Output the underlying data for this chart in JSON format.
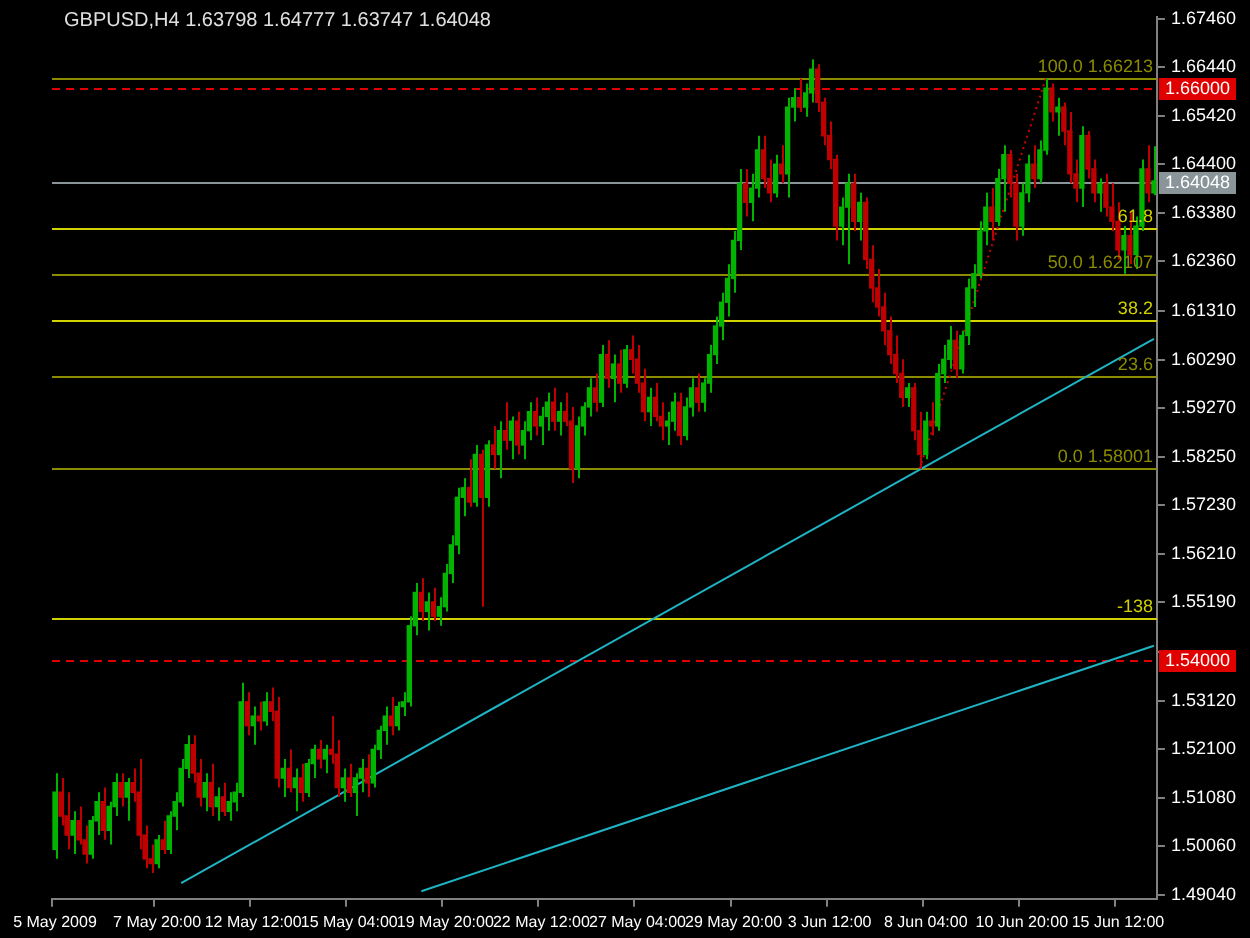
{
  "chart_data": {
    "type": "candlestick",
    "title": "GBPUSD,H4 1.63798 1.64777 1.63747 1.64048",
    "categories": [
      "5 May 2009",
      null,
      null,
      null,
      null,
      null,
      null,
      null,
      null,
      null,
      null,
      null,
      null,
      null,
      null,
      null,
      null,
      "7 May 20:00",
      null,
      null,
      null,
      null,
      null,
      null,
      null,
      null,
      null,
      null,
      null,
      null,
      null,
      null,
      null,
      "12 May 12:00",
      null,
      null,
      null,
      null,
      null,
      null,
      null,
      null,
      null,
      null,
      null,
      null,
      null,
      null,
      null,
      "15 May 04:00",
      null,
      null,
      null,
      null,
      null,
      null,
      null,
      null,
      null,
      null,
      null,
      null,
      null,
      null,
      null,
      "19 May 20:00",
      null,
      null,
      null,
      null,
      null,
      null,
      null,
      null,
      null,
      null,
      null,
      null,
      null,
      null,
      null,
      "22 May 12:00",
      null,
      null,
      null,
      null,
      null,
      null,
      null,
      null,
      null,
      null,
      null,
      null,
      null,
      null,
      null,
      "27 May 04:00",
      null,
      null,
      null,
      null,
      null,
      null,
      null,
      null,
      null,
      null,
      null,
      null,
      null,
      null,
      null,
      "29 May 20:00",
      null,
      null,
      null,
      null,
      null,
      null,
      null,
      null,
      null,
      null,
      null,
      null,
      null,
      null,
      null,
      "3 Jun 12:00",
      null,
      null,
      null,
      null,
      null,
      null,
      null,
      null,
      null,
      null,
      null,
      null,
      null,
      null,
      null,
      "8 Jun 04:00",
      null,
      null,
      null,
      null,
      null,
      null,
      null,
      null,
      null,
      null,
      null,
      null,
      null,
      null,
      null,
      "10 Jun 20:00",
      null,
      null,
      null,
      null,
      null,
      null,
      null,
      null,
      null,
      null,
      null,
      null,
      null,
      null,
      null,
      "15 Jun 12:00",
      null,
      null,
      null,
      null,
      null,
      null
    ],
    "ohlc": [
      [
        1.5,
        1.516,
        1.498,
        1.512
      ],
      [
        1.512,
        1.515,
        1.505,
        1.507
      ],
      [
        1.507,
        1.512,
        1.5,
        1.503
      ],
      [
        1.503,
        1.508,
        1.499,
        1.506
      ],
      [
        1.506,
        1.509,
        1.501,
        1.502
      ],
      [
        1.502,
        1.505,
        1.497,
        1.499
      ],
      [
        1.499,
        1.507,
        1.498,
        1.506
      ],
      [
        1.506,
        1.512,
        1.503,
        1.51
      ],
      [
        1.51,
        1.513,
        1.502,
        1.504
      ],
      [
        1.504,
        1.51,
        1.501,
        1.509
      ],
      [
        1.509,
        1.516,
        1.507,
        1.514
      ],
      [
        1.514,
        1.516,
        1.509,
        1.511
      ],
      [
        1.511,
        1.515,
        1.506,
        1.514
      ],
      [
        1.514,
        1.517,
        1.51,
        1.512
      ],
      [
        1.512,
        1.519,
        1.5,
        1.503
      ],
      [
        1.503,
        1.505,
        1.496,
        1.498
      ],
      [
        1.498,
        1.501,
        1.495,
        1.497
      ],
      [
        1.497,
        1.503,
        1.496,
        1.502
      ],
      [
        1.502,
        1.506,
        1.499,
        1.5
      ],
      [
        1.5,
        1.508,
        1.499,
        1.507
      ],
      [
        1.507,
        1.512,
        1.504,
        1.51
      ],
      [
        1.51,
        1.519,
        1.509,
        1.517
      ],
      [
        1.517,
        1.524,
        1.515,
        1.522
      ],
      [
        1.522,
        1.524,
        1.514,
        1.516
      ],
      [
        1.516,
        1.519,
        1.509,
        1.511
      ],
      [
        1.511,
        1.516,
        1.508,
        1.514
      ],
      [
        1.514,
        1.518,
        1.507,
        1.509
      ],
      [
        1.509,
        1.513,
        1.506,
        1.511
      ],
      [
        1.511,
        1.514,
        1.507,
        1.508
      ],
      [
        1.508,
        1.512,
        1.506,
        1.51
      ],
      [
        1.51,
        1.514,
        1.508,
        1.512
      ],
      [
        1.512,
        1.535,
        1.511,
        1.531
      ],
      [
        1.531,
        1.533,
        1.524,
        1.526
      ],
      [
        1.526,
        1.53,
        1.522,
        1.528
      ],
      [
        1.528,
        1.531,
        1.525,
        1.527
      ],
      [
        1.527,
        1.533,
        1.526,
        1.531
      ],
      [
        1.531,
        1.534,
        1.527,
        1.529
      ],
      [
        1.529,
        1.532,
        1.513,
        1.515
      ],
      [
        1.515,
        1.519,
        1.511,
        1.517
      ],
      [
        1.517,
        1.521,
        1.512,
        1.513
      ],
      [
        1.513,
        1.517,
        1.508,
        1.515
      ],
      [
        1.515,
        1.518,
        1.51,
        1.512
      ],
      [
        1.512,
        1.519,
        1.511,
        1.518
      ],
      [
        1.518,
        1.522,
        1.515,
        1.521
      ],
      [
        1.521,
        1.523,
        1.517,
        1.519
      ],
      [
        1.519,
        1.522,
        1.516,
        1.521
      ],
      [
        1.521,
        1.528,
        1.518,
        1.52
      ],
      [
        1.52,
        1.523,
        1.511,
        1.513
      ],
      [
        1.513,
        1.517,
        1.51,
        1.515
      ],
      [
        1.515,
        1.518,
        1.511,
        1.512
      ],
      [
        1.512,
        1.516,
        1.507,
        1.515
      ],
      [
        1.515,
        1.519,
        1.512,
        1.517
      ],
      [
        1.517,
        1.52,
        1.511,
        1.514
      ],
      [
        1.514,
        1.522,
        1.513,
        1.521
      ],
      [
        1.521,
        1.526,
        1.519,
        1.525
      ],
      [
        1.525,
        1.53,
        1.522,
        1.528
      ],
      [
        1.528,
        1.532,
        1.524,
        1.526
      ],
      [
        1.526,
        1.531,
        1.525,
        1.53
      ],
      [
        1.53,
        1.533,
        1.528,
        1.531
      ],
      [
        1.531,
        1.549,
        1.53,
        1.547
      ],
      [
        1.547,
        1.556,
        1.545,
        1.554
      ],
      [
        1.554,
        1.557,
        1.548,
        1.55
      ],
      [
        1.55,
        1.554,
        1.546,
        1.552
      ],
      [
        1.552,
        1.555,
        1.548,
        1.549
      ],
      [
        1.549,
        1.553,
        1.547,
        1.551
      ],
      [
        1.551,
        1.56,
        1.55,
        1.558
      ],
      [
        1.558,
        1.566,
        1.556,
        1.564
      ],
      [
        1.564,
        1.576,
        1.562,
        1.574
      ],
      [
        1.574,
        1.578,
        1.57,
        1.576
      ],
      [
        1.576,
        1.582,
        1.572,
        1.573
      ],
      [
        1.573,
        1.585,
        1.572,
        1.583
      ],
      [
        1.583,
        1.584,
        1.551,
        1.574
      ],
      [
        1.574,
        1.586,
        1.572,
        1.585
      ],
      [
        1.585,
        1.589,
        1.58,
        1.583
      ],
      [
        1.583,
        1.59,
        1.578,
        1.588
      ],
      [
        1.588,
        1.594,
        1.584,
        1.586
      ],
      [
        1.586,
        1.591,
        1.582,
        1.59
      ],
      [
        1.59,
        1.592,
        1.583,
        1.585
      ],
      [
        1.585,
        1.59,
        1.582,
        1.588
      ],
      [
        1.588,
        1.594,
        1.586,
        1.592
      ],
      [
        1.592,
        1.595,
        1.587,
        1.589
      ],
      [
        1.589,
        1.593,
        1.585,
        1.591
      ],
      [
        1.591,
        1.596,
        1.588,
        1.594
      ],
      [
        1.594,
        1.597,
        1.588,
        1.59
      ],
      [
        1.59,
        1.594,
        1.587,
        1.592
      ],
      [
        1.592,
        1.596,
        1.589,
        1.59
      ],
      [
        1.59,
        1.593,
        1.577,
        1.58
      ],
      [
        1.58,
        1.591,
        1.578,
        1.589
      ],
      [
        1.589,
        1.594,
        1.587,
        1.593
      ],
      [
        1.593,
        1.599,
        1.591,
        1.597
      ],
      [
        1.597,
        1.6,
        1.592,
        1.594
      ],
      [
        1.594,
        1.606,
        1.593,
        1.604
      ],
      [
        1.604,
        1.607,
        1.597,
        1.599
      ],
      [
        1.599,
        1.604,
        1.594,
        1.602
      ],
      [
        1.602,
        1.605,
        1.596,
        1.598
      ],
      [
        1.598,
        1.606,
        1.597,
        1.605
      ],
      [
        1.605,
        1.608,
        1.6,
        1.603
      ],
      [
        1.603,
        1.606,
        1.596,
        1.598
      ],
      [
        1.598,
        1.601,
        1.59,
        1.592
      ],
      [
        1.592,
        1.597,
        1.589,
        1.595
      ],
      [
        1.595,
        1.598,
        1.59,
        1.591
      ],
      [
        1.591,
        1.594,
        1.586,
        1.589
      ],
      [
        1.589,
        1.592,
        1.585,
        1.59
      ],
      [
        1.59,
        1.596,
        1.588,
        1.594
      ],
      [
        1.594,
        1.596,
        1.585,
        1.587
      ],
      [
        1.587,
        1.595,
        1.586,
        1.593
      ],
      [
        1.593,
        1.599,
        1.591,
        1.597
      ],
      [
        1.597,
        1.6,
        1.592,
        1.594
      ],
      [
        1.594,
        1.599,
        1.592,
        1.598
      ],
      [
        1.598,
        1.606,
        1.596,
        1.604
      ],
      [
        1.604,
        1.612,
        1.602,
        1.61
      ],
      [
        1.61,
        1.617,
        1.607,
        1.615
      ],
      [
        1.615,
        1.623,
        1.612,
        1.62
      ],
      [
        1.62,
        1.63,
        1.617,
        1.628
      ],
      [
        1.628,
        1.643,
        1.626,
        1.64
      ],
      [
        1.64,
        1.643,
        1.633,
        1.636
      ],
      [
        1.636,
        1.642,
        1.632,
        1.639
      ],
      [
        1.639,
        1.65,
        1.637,
        1.647
      ],
      [
        1.647,
        1.65,
        1.639,
        1.641
      ],
      [
        1.641,
        1.645,
        1.636,
        1.638
      ],
      [
        1.638,
        1.646,
        1.637,
        1.644
      ],
      [
        1.644,
        1.648,
        1.64,
        1.642
      ],
      [
        1.642,
        1.658,
        1.637,
        1.656
      ],
      [
        1.656,
        1.66,
        1.653,
        1.658
      ],
      [
        1.658,
        1.662,
        1.655,
        1.656
      ],
      [
        1.656,
        1.661,
        1.654,
        1.659
      ],
      [
        1.659,
        1.666,
        1.657,
        1.664
      ],
      [
        1.664,
        1.665,
        1.655,
        1.657
      ],
      [
        1.657,
        1.658,
        1.648,
        1.65
      ],
      [
        1.65,
        1.653,
        1.643,
        1.645
      ],
      [
        1.645,
        1.646,
        1.628,
        1.631
      ],
      [
        1.631,
        1.637,
        1.627,
        1.635
      ],
      [
        1.635,
        1.642,
        1.623,
        1.64
      ],
      [
        1.64,
        1.642,
        1.63,
        1.632
      ],
      [
        1.632,
        1.638,
        1.628,
        1.636
      ],
      [
        1.636,
        1.637,
        1.622,
        1.624
      ],
      [
        1.624,
        1.627,
        1.615,
        1.618
      ],
      [
        1.618,
        1.622,
        1.612,
        1.614
      ],
      [
        1.614,
        1.617,
        1.606,
        1.609
      ],
      [
        1.609,
        1.612,
        1.602,
        1.604
      ],
      [
        1.604,
        1.608,
        1.598,
        1.6
      ],
      [
        1.6,
        1.603,
        1.593,
        1.595
      ],
      [
        1.595,
        1.598,
        1.593,
        1.597
      ],
      [
        1.597,
        1.598,
        1.586,
        1.588
      ],
      [
        1.588,
        1.592,
        1.58,
        1.583
      ],
      [
        1.583,
        1.592,
        1.582,
        1.59
      ],
      [
        1.59,
        1.594,
        1.587,
        1.589
      ],
      [
        1.589,
        1.602,
        1.588,
        1.6
      ],
      [
        1.6,
        1.606,
        1.598,
        1.603
      ],
      [
        1.603,
        1.61,
        1.601,
        1.607
      ],
      [
        1.607,
        1.609,
        1.599,
        1.601
      ],
      [
        1.601,
        1.609,
        1.6,
        1.608
      ],
      [
        1.608,
        1.62,
        1.606,
        1.618
      ],
      [
        1.618,
        1.623,
        1.614,
        1.621
      ],
      [
        1.621,
        1.632,
        1.62,
        1.63
      ],
      [
        1.63,
        1.638,
        1.627,
        1.635
      ],
      [
        1.635,
        1.639,
        1.628,
        1.632
      ],
      [
        1.632,
        1.643,
        1.631,
        1.641
      ],
      [
        1.641,
        1.648,
        1.634,
        1.646
      ],
      [
        1.646,
        1.647,
        1.637,
        1.64
      ],
      [
        1.64,
        1.642,
        1.628,
        1.631
      ],
      [
        1.631,
        1.64,
        1.629,
        1.638
      ],
      [
        1.638,
        1.646,
        1.636,
        1.644
      ],
      [
        1.644,
        1.648,
        1.639,
        1.641
      ],
      [
        1.641,
        1.649,
        1.64,
        1.647
      ],
      [
        1.647,
        1.662,
        1.646,
        1.66
      ],
      [
        1.66,
        1.661,
        1.653,
        1.655
      ],
      [
        1.655,
        1.658,
        1.65,
        1.656
      ],
      [
        1.656,
        1.657,
        1.648,
        1.651
      ],
      [
        1.651,
        1.655,
        1.64,
        1.642
      ],
      [
        1.642,
        1.645,
        1.636,
        1.639
      ],
      [
        1.639,
        1.652,
        1.635,
        1.65
      ],
      [
        1.65,
        1.651,
        1.641,
        1.643
      ],
      [
        1.643,
        1.645,
        1.636,
        1.638
      ],
      [
        1.638,
        1.641,
        1.634,
        1.64
      ],
      [
        1.64,
        1.642,
        1.633,
        1.635
      ],
      [
        1.635,
        1.64,
        1.63,
        1.632
      ],
      [
        1.632,
        1.636,
        1.624,
        1.626
      ],
      [
        1.626,
        1.631,
        1.621,
        1.629
      ],
      [
        1.629,
        1.634,
        1.623,
        1.625
      ],
      [
        1.625,
        1.633,
        1.622,
        1.631
      ],
      [
        1.631,
        1.645,
        1.63,
        1.643
      ],
      [
        1.643,
        1.648,
        1.636,
        1.638
      ],
      [
        1.63798,
        1.64777,
        1.63747,
        1.64048
      ]
    ],
    "colors": [
      "#00b400",
      "#c00000",
      "#c00000",
      "#00b400",
      "#c00000",
      "#c00000",
      "#00b400",
      "#00b400",
      "#c00000",
      "#00b400",
      "#00b400",
      "#c00000",
      "#00b400",
      "#c00000",
      "#c00000",
      "#c00000",
      "#c00000",
      "#00b400",
      "#c00000",
      "#00b400",
      "#00b400",
      "#00b400",
      "#00b400",
      "#c00000",
      "#c00000",
      "#00b400",
      "#c00000",
      "#00b400",
      "#c00000",
      "#00b400",
      "#00b400",
      "#00b400",
      "#c00000",
      "#00b400",
      "#c00000",
      "#00b400",
      "#c00000",
      "#c00000",
      "#00b400",
      "#c00000",
      "#00b400",
      "#c00000",
      "#00b400",
      "#00b400",
      "#c00000",
      "#00b400",
      "#c00000",
      "#c00000",
      "#00b400",
      "#c00000",
      "#00b400",
      "#00b400",
      "#c00000",
      "#00b400",
      "#00b400",
      "#00b400",
      "#c00000",
      "#00b400",
      "#00b400",
      "#00b400",
      "#00b400",
      "#c00000",
      "#00b400",
      "#c00000",
      "#00b400",
      "#00b400",
      "#00b400",
      "#00b400",
      "#00b400",
      "#c00000",
      "#00b400",
      "#c00000",
      "#00b400",
      "#c00000",
      "#00b400",
      "#c00000",
      "#00b400",
      "#c00000",
      "#00b400",
      "#00b400",
      "#c00000",
      "#00b400",
      "#00b400",
      "#c00000",
      "#00b400",
      "#c00000",
      "#c00000",
      "#00b400",
      "#00b400",
      "#00b400",
      "#c00000",
      "#00b400",
      "#c00000",
      "#00b400",
      "#c00000",
      "#00b400",
      "#c00000",
      "#c00000",
      "#c00000",
      "#00b400",
      "#c00000",
      "#c00000",
      "#00b400",
      "#00b400",
      "#c00000",
      "#00b400",
      "#00b400",
      "#c00000",
      "#00b400",
      "#00b400",
      "#00b400",
      "#00b400",
      "#00b400",
      "#00b400",
      "#00b400",
      "#c00000",
      "#00b400",
      "#00b400",
      "#c00000",
      "#c00000",
      "#00b400",
      "#c00000",
      "#00b400",
      "#00b400",
      "#c00000",
      "#00b400",
      "#00b400",
      "#c00000",
      "#c00000",
      "#c00000",
      "#c00000",
      "#00b400",
      "#00b400",
      "#c00000",
      "#00b400",
      "#c00000",
      "#c00000",
      "#c00000",
      "#c00000",
      "#c00000",
      "#c00000",
      "#c00000",
      "#00b400",
      "#c00000",
      "#c00000",
      "#00b400",
      "#c00000",
      "#00b400",
      "#00b400",
      "#00b400",
      "#c00000",
      "#00b400",
      "#00b400",
      "#00b400",
      "#00b400",
      "#00b400",
      "#c00000",
      "#00b400",
      "#00b400",
      "#c00000",
      "#c00000",
      "#00b400",
      "#00b400",
      "#c00000",
      "#00b400",
      "#00b400",
      "#c00000",
      "#00b400",
      "#c00000",
      "#c00000",
      "#c00000",
      "#00b400",
      "#c00000",
      "#c00000",
      "#00b400",
      "#c00000",
      "#c00000",
      "#c00000",
      "#00b400",
      "#c00000",
      "#00b400",
      "#00b400",
      "#c00000",
      "#00b400"
    ],
    "series": [
      {
        "type": "line",
        "color": "#1eb4c4",
        "values": [
          null,
          null,
          null,
          null,
          null,
          null,
          null,
          null,
          null,
          null,
          null,
          null,
          null,
          null,
          null,
          null,
          null,
          null,
          null,
          null,
          null,
          1.4929,
          null,
          null,
          null,
          null,
          null,
          null,
          null,
          null,
          null,
          null,
          null,
          null,
          null,
          null,
          null,
          null,
          null,
          null,
          null,
          null,
          null,
          null,
          null,
          null,
          null,
          null,
          null,
          null,
          null,
          null,
          null,
          null,
          null,
          null,
          null,
          null,
          null,
          null,
          null,
          null,
          null,
          null,
          null,
          null,
          null,
          null,
          null,
          null,
          null,
          null,
          null,
          null,
          null,
          null,
          null,
          null,
          null,
          null,
          null,
          null,
          null,
          null,
          null,
          null,
          null,
          null,
          null,
          null,
          null,
          null,
          null,
          null,
          null,
          null,
          null,
          null,
          null,
          null,
          null,
          null,
          null,
          null,
          null,
          null,
          null,
          null,
          null,
          null,
          null,
          null,
          null,
          null,
          null,
          null,
          null,
          null,
          null,
          null,
          null,
          null,
          null,
          null,
          null,
          null,
          null,
          null,
          null,
          null,
          null,
          null,
          null,
          null,
          null,
          null,
          null,
          null,
          null,
          null,
          null,
          null,
          null,
          null,
          1.5798,
          null,
          null,
          null,
          null,
          null,
          null,
          null,
          null,
          null,
          null,
          null,
          null,
          null,
          null,
          null,
          null,
          null,
          null,
          null,
          null,
          null,
          null,
          null,
          null,
          null,
          null,
          null,
          null,
          null,
          null,
          null,
          null,
          null,
          null,
          null,
          null,
          null,
          null,
          1.6073
        ]
      },
      {
        "type": "line",
        "color": "#1eb4c4",
        "values": [
          null,
          null,
          null,
          null,
          null,
          null,
          null,
          null,
          null,
          null,
          null,
          null,
          null,
          null,
          null,
          null,
          null,
          null,
          null,
          null,
          null,
          null,
          null,
          null,
          null,
          null,
          null,
          null,
          null,
          null,
          null,
          null,
          null,
          null,
          null,
          null,
          null,
          null,
          null,
          null,
          null,
          null,
          null,
          null,
          null,
          null,
          null,
          null,
          null,
          null,
          null,
          null,
          null,
          null,
          null,
          null,
          null,
          null,
          null,
          null,
          null,
          1.4912,
          null,
          null,
          null,
          null,
          null,
          null,
          null,
          null,
          null,
          null,
          null,
          null,
          null,
          null,
          null,
          null,
          null,
          null,
          null,
          null,
          null,
          null,
          null,
          null,
          null,
          null,
          null,
          null,
          null,
          null,
          null,
          null,
          null,
          null,
          null,
          null,
          null,
          null,
          null,
          null,
          null,
          null,
          null,
          null,
          null,
          null,
          null,
          null,
          null,
          null,
          null,
          null,
          null,
          null,
          null,
          null,
          null,
          null,
          null,
          null,
          null,
          null,
          null,
          null,
          null,
          null,
          null,
          null,
          null,
          null,
          null,
          null,
          null,
          null,
          null,
          null,
          null,
          null,
          null,
          null,
          null,
          null,
          null,
          null,
          null,
          null,
          null,
          null,
          null,
          null,
          null,
          null,
          null,
          null,
          null,
          null,
          null,
          null,
          null,
          null,
          null,
          null,
          null,
          null,
          null,
          null,
          null,
          null,
          null,
          null,
          null,
          null,
          null,
          null,
          null,
          null,
          null,
          null,
          null,
          null,
          null,
          1.5428
        ]
      },
      {
        "type": "line",
        "color": "#d00000",
        "line_style": "dotted",
        "values": [
          null,
          null,
          null,
          null,
          null,
          null,
          null,
          null,
          null,
          null,
          null,
          null,
          null,
          null,
          null,
          null,
          null,
          null,
          null,
          null,
          null,
          null,
          null,
          null,
          null,
          null,
          null,
          null,
          null,
          null,
          null,
          null,
          null,
          null,
          null,
          null,
          null,
          null,
          null,
          null,
          null,
          null,
          null,
          null,
          null,
          null,
          null,
          null,
          null,
          null,
          null,
          null,
          null,
          null,
          null,
          null,
          null,
          null,
          null,
          null,
          null,
          null,
          null,
          null,
          null,
          null,
          null,
          null,
          null,
          null,
          null,
          null,
          null,
          null,
          null,
          null,
          null,
          null,
          null,
          null,
          null,
          null,
          null,
          null,
          null,
          null,
          null,
          null,
          null,
          null,
          null,
          null,
          null,
          null,
          null,
          null,
          null,
          null,
          null,
          null,
          null,
          null,
          null,
          null,
          null,
          null,
          null,
          null,
          null,
          null,
          null,
          null,
          null,
          null,
          null,
          null,
          null,
          null,
          null,
          null,
          null,
          null,
          null,
          null,
          null,
          null,
          null,
          null,
          null,
          null,
          null,
          null,
          null,
          null,
          null,
          null,
          null,
          null,
          null,
          null,
          null,
          null,
          null,
          null,
          1.58,
          null,
          null,
          null,
          null,
          null,
          null,
          null,
          null,
          null,
          null,
          null,
          null,
          null,
          null,
          null,
          null,
          null,
          null,
          null,
          null,
          1.662,
          null,
          null,
          null,
          null,
          null,
          null,
          null,
          null,
          null,
          null,
          null,
          null,
          null,
          null,
          null,
          null,
          null,
          null
        ]
      }
    ],
    "ylim": [
      1.4896,
      1.675
    ],
    "yticks": [
      {
        "value": 1.6746,
        "label": "1.67460"
      },
      {
        "value": 1.6644,
        "label": "1.66440"
      },
      {
        "value": 1.6542,
        "label": "1.65420"
      },
      {
        "value": 1.644,
        "label": "1.64400"
      },
      {
        "value": 1.6338,
        "label": "1.63380"
      },
      {
        "value": 1.6236,
        "label": "1.62360"
      },
      {
        "value": 1.6131,
        "label": "1.61310"
      },
      {
        "value": 1.6029,
        "label": "1.60290"
      },
      {
        "value": 1.5927,
        "label": "1.59270"
      },
      {
        "value": 1.5825,
        "label": "1.58250"
      },
      {
        "value": 1.5723,
        "label": "1.57230"
      },
      {
        "value": 1.5621,
        "label": "1.56210"
      },
      {
        "value": 1.5519,
        "label": "1.55190"
      },
      {
        "value": 1.5414,
        "label": null
      },
      {
        "value": 1.5312,
        "label": "1.53120"
      },
      {
        "value": 1.521,
        "label": "1.52100"
      },
      {
        "value": 1.5108,
        "label": "1.51080"
      },
      {
        "value": 1.5006,
        "label": "1.50060"
      },
      {
        "value": 1.4904,
        "label": "1.49040"
      }
    ],
    "annotations": [
      {
        "text": "100.0 1.66213",
        "y": 1.66213
      },
      {
        "text": "61.8",
        "y": 1.63076
      },
      {
        "text": "50.0 1.62107",
        "y": 1.62107
      },
      {
        "text": "38.2",
        "y": 1.61138
      },
      {
        "text": "23.6",
        "y": 1.59939
      },
      {
        "text": "0.0 1.58001",
        "y": 1.58001
      },
      {
        "text": "-138",
        "y": 1.54864
      }
    ],
    "ref_lines": [
      {
        "axis": "y",
        "value": 1.66213,
        "color": "#8c8c00"
      },
      {
        "axis": "y",
        "value": 1.63076,
        "color": "#d2d200"
      },
      {
        "axis": "y",
        "value": 1.62107,
        "color": "#8c8c00"
      },
      {
        "axis": "y",
        "value": 1.61138,
        "color": "#d2d200"
      },
      {
        "axis": "y",
        "value": 1.59939,
        "color": "#8c8c00"
      },
      {
        "axis": "y",
        "value": 1.58001,
        "color": "#8c8c00"
      },
      {
        "axis": "y",
        "value": 1.54864,
        "color": "#d2d200"
      },
      {
        "axis": "y",
        "value": 1.66,
        "label": "1.66000",
        "color": "#e00000",
        "line_style": "dashed"
      },
      {
        "axis": "y",
        "value": 1.54,
        "label": "1.54000",
        "color": "#e00000",
        "line_style": "dashed"
      },
      {
        "axis": "y",
        "value": 1.64048,
        "label": "1.64048",
        "color": "#8a9599"
      }
    ]
  }
}
